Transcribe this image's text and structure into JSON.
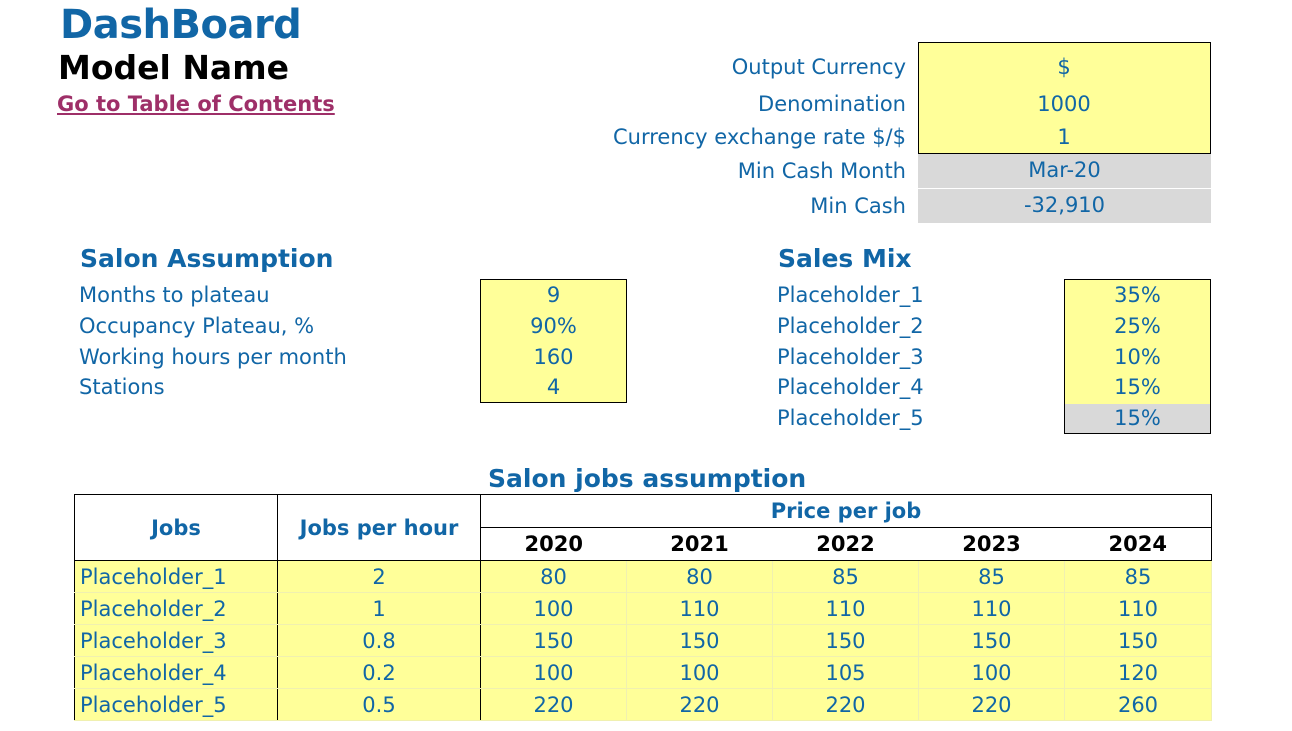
{
  "header": {
    "title": "DashBoard",
    "model_name": "Model Name",
    "toc_link": "Go to Table of Contents"
  },
  "settings": [
    {
      "label": "Output Currency",
      "value": "$",
      "style": "input"
    },
    {
      "label": "Denomination",
      "value": "1000",
      "style": "input"
    },
    {
      "label": "Currency exchange rate $/$",
      "value": "1",
      "style": "input"
    },
    {
      "label": "Min Cash Month",
      "value": "Mar-20",
      "style": "calc"
    },
    {
      "label": "Min Cash",
      "value": "-32,910",
      "style": "calc"
    }
  ],
  "salon_assumption": {
    "title": "Salon Assumption",
    "rows": [
      {
        "label": "Months to plateau",
        "value": "9"
      },
      {
        "label": "Occupancy Plateau, %",
        "value": "90%"
      },
      {
        "label": "Working hours per month",
        "value": "160"
      },
      {
        "label": "Stations",
        "value": "4"
      }
    ]
  },
  "sales_mix": {
    "title": "Sales Mix",
    "rows": [
      {
        "label": "Placeholder_1",
        "value": "35%",
        "style": "input"
      },
      {
        "label": "Placeholder_2",
        "value": "25%",
        "style": "input"
      },
      {
        "label": "Placeholder_3",
        "value": "10%",
        "style": "input"
      },
      {
        "label": "Placeholder_4",
        "value": "15%",
        "style": "input"
      },
      {
        "label": "Placeholder_5",
        "value": "15%",
        "style": "calc"
      }
    ]
  },
  "jobs_table": {
    "title": "Salon jobs assumption",
    "col_jobs": "Jobs",
    "col_jobs_per_hour": "Jobs per hour",
    "col_price": "Price per job",
    "years": [
      "2020",
      "2021",
      "2022",
      "2023",
      "2024"
    ],
    "rows": [
      {
        "name": "Placeholder_1",
        "jph": "2",
        "prices": [
          "80",
          "80",
          "85",
          "85",
          "85"
        ]
      },
      {
        "name": "Placeholder_2",
        "jph": "1",
        "prices": [
          "100",
          "110",
          "110",
          "110",
          "110"
        ]
      },
      {
        "name": "Placeholder_3",
        "jph": "0.8",
        "prices": [
          "150",
          "150",
          "150",
          "150",
          "150"
        ]
      },
      {
        "name": "Placeholder_4",
        "jph": "0.2",
        "prices": [
          "100",
          "100",
          "105",
          "100",
          "120"
        ]
      },
      {
        "name": "Placeholder_5",
        "jph": "0.5",
        "prices": [
          "220",
          "220",
          "220",
          "220",
          "260"
        ]
      }
    ]
  }
}
